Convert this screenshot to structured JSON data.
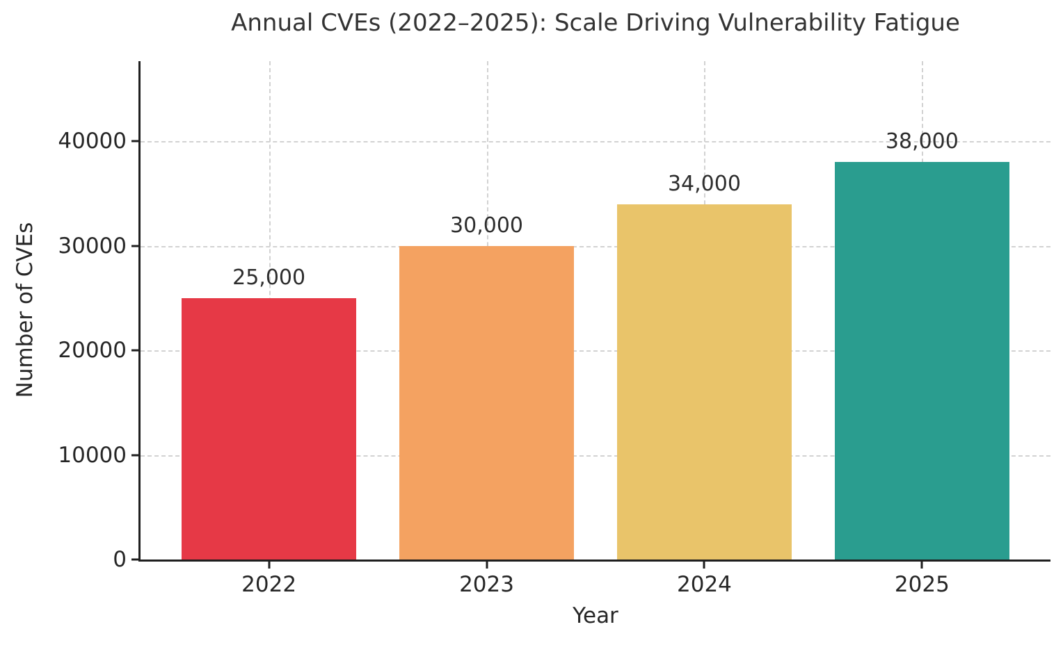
{
  "figure": {
    "title": "Annual CVEs (2022–2025): Scale Driving Vulnerability Fatigue"
  },
  "chart_data": {
    "type": "bar",
    "title": "Annual CVEs (2022–2025): Scale Driving Vulnerability Fatigue",
    "xlabel": "Year",
    "ylabel": "Number of CVEs",
    "categories": [
      "2022",
      "2023",
      "2024",
      "2025"
    ],
    "values": [
      25000,
      30000,
      34000,
      38000
    ],
    "bar_labels": [
      "25,000",
      "30,000",
      "34,000",
      "38,000"
    ],
    "bar_colors": [
      "#E63946",
      "#F4A261",
      "#E9C46A",
      "#2A9D8F"
    ],
    "yticks": [
      0,
      10000,
      20000,
      30000,
      40000
    ],
    "ytick_labels": [
      "0",
      "10000",
      "20000",
      "30000",
      "40000"
    ],
    "ylim": [
      0,
      47670
    ],
    "xlim": [
      -0.59,
      3.59
    ],
    "bar_width": 0.8,
    "grid": {
      "visible": true,
      "style": "dashed",
      "color": "#d2d2d2"
    },
    "legend": null,
    "axis_color": "#1f1f1f",
    "text_color": "#262626"
  }
}
